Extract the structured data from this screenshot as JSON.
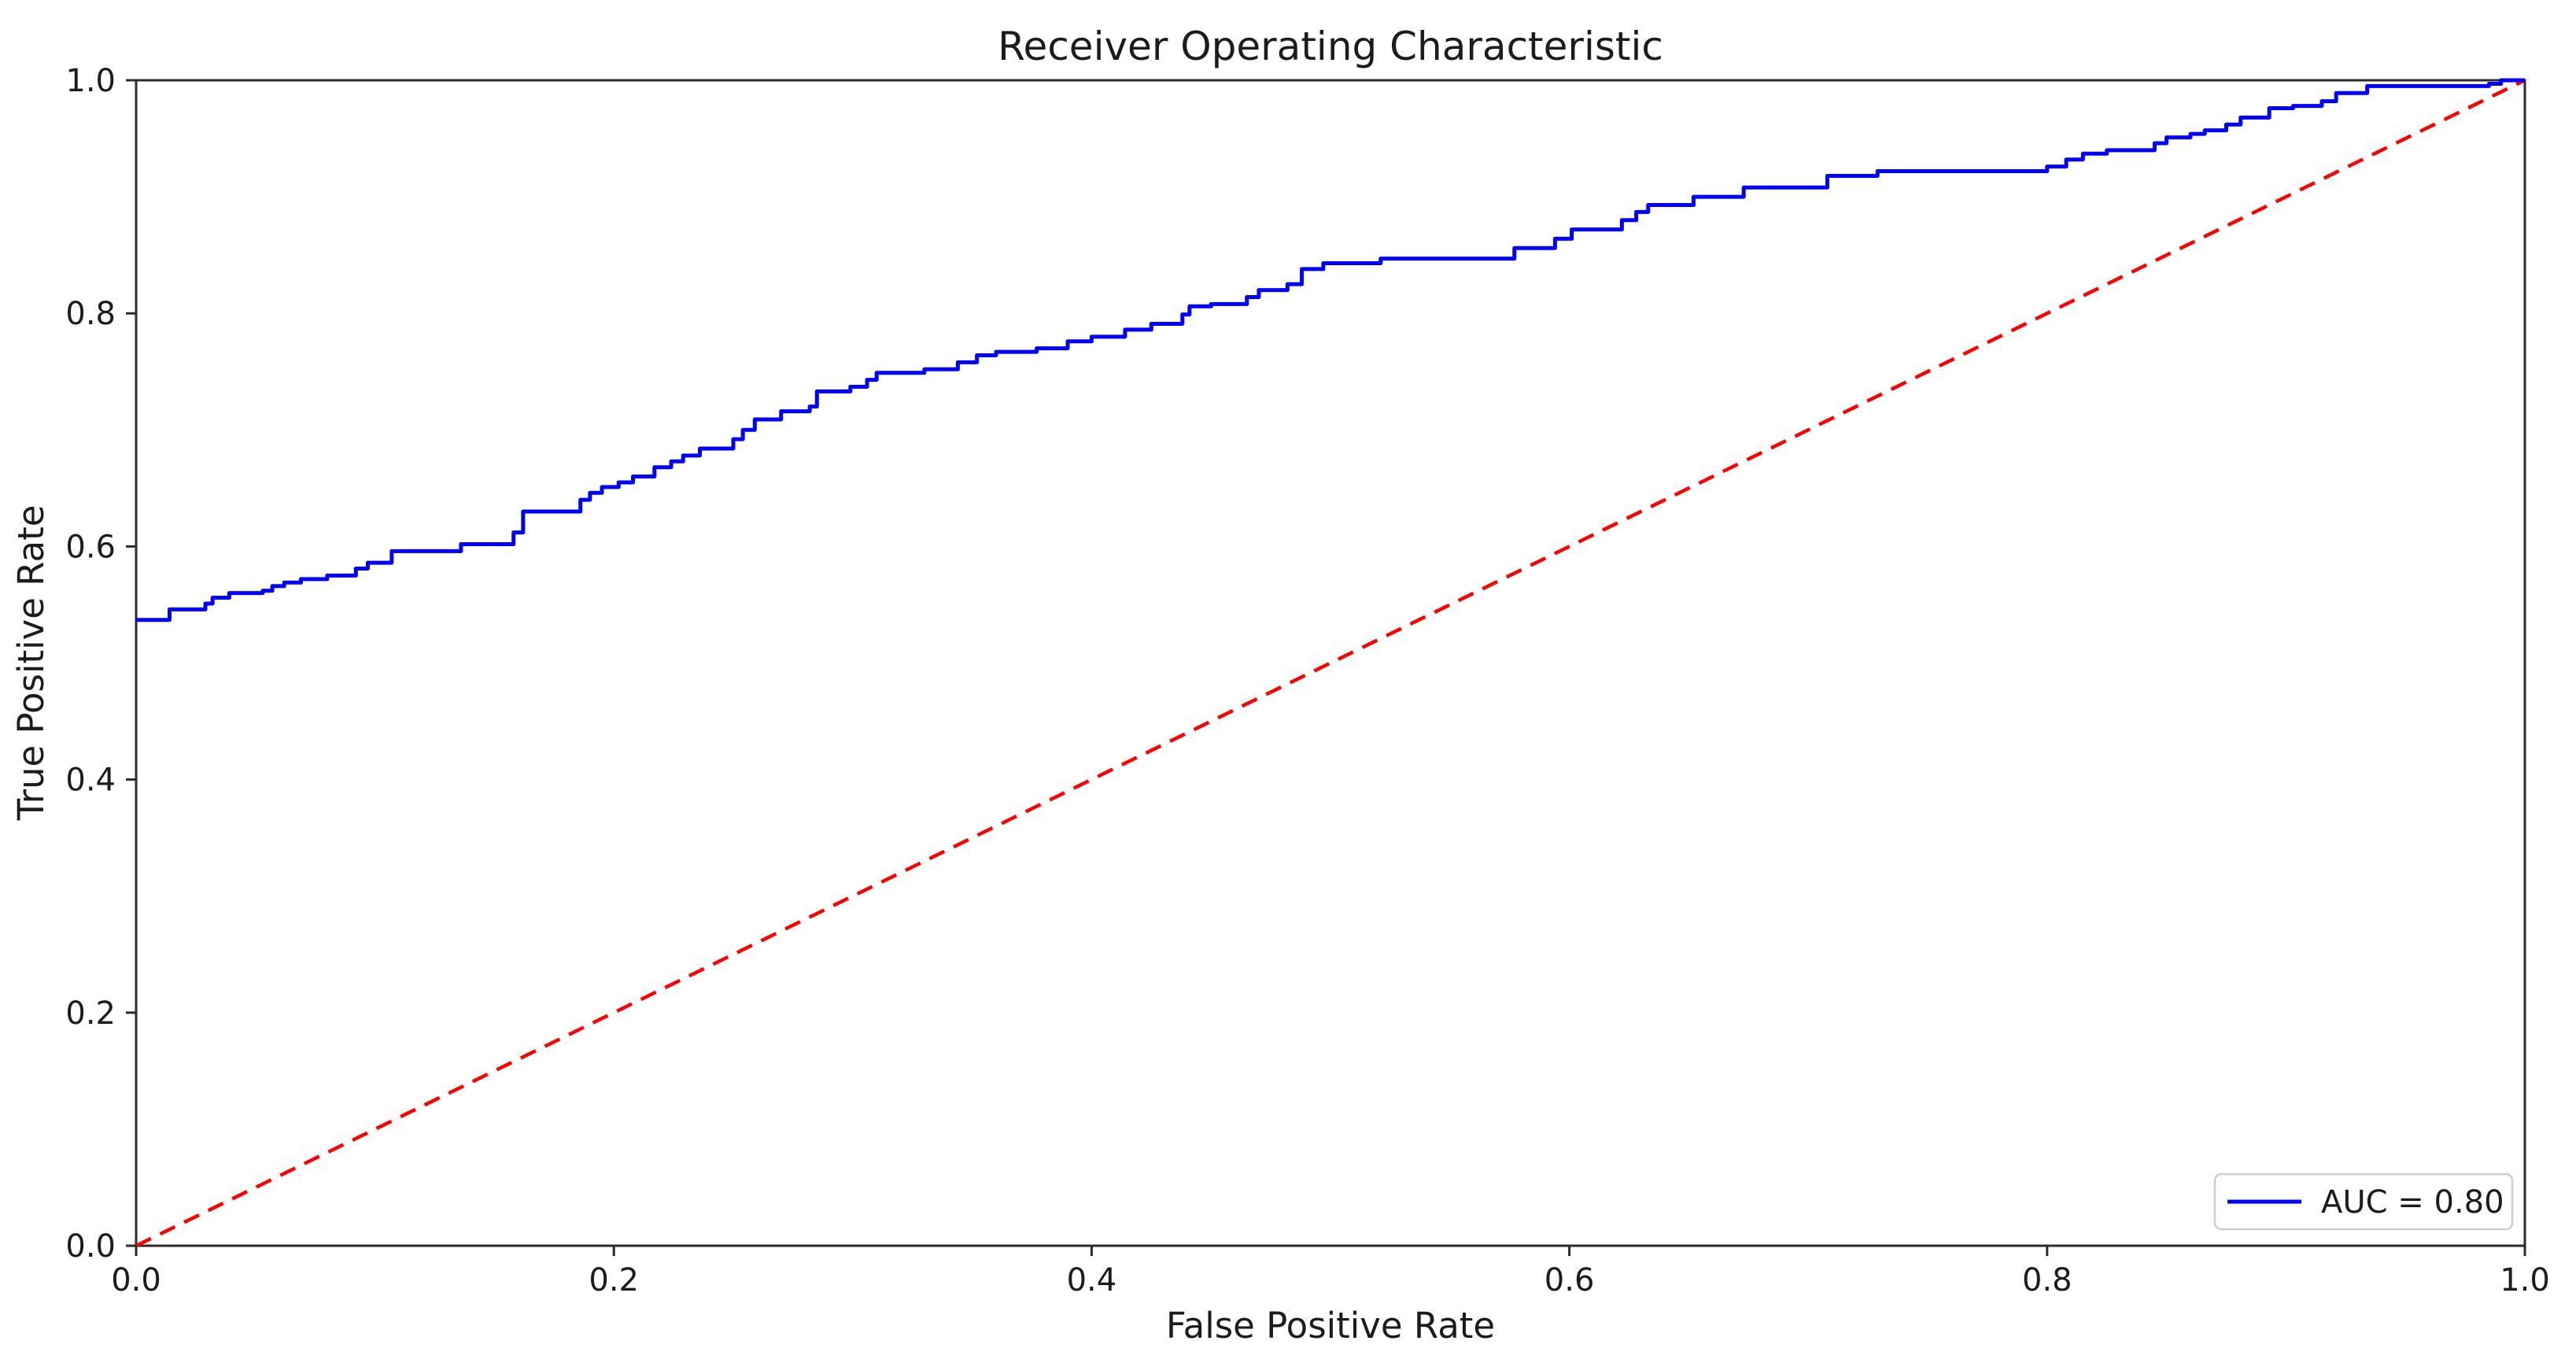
{
  "colors": {
    "roc_curve": "#0000ff",
    "chance_diagonal": "#ff0000",
    "axes": "#2b2b2b",
    "text": "#1c1c1c",
    "legend_border": "#cccccc",
    "background": "#ffffff"
  },
  "legend": {
    "label": "AUC = 0.80",
    "position": "lower right"
  },
  "chart_data": {
    "type": "line",
    "title": "Receiver Operating Characteristic",
    "xlabel": "False Positive Rate",
    "ylabel": "True Positive Rate",
    "xlim": [
      0.0,
      1.0
    ],
    "ylim": [
      0.0,
      1.0
    ],
    "grid": false,
    "legend_position": "lower right",
    "x_tick_labels": [
      "0.0",
      "0.2",
      "0.4",
      "0.6",
      "0.8",
      "1.0"
    ],
    "y_tick_labels": [
      "0.0",
      "0.2",
      "0.4",
      "0.6",
      "0.8",
      "1.0"
    ],
    "series": [
      {
        "name": "AUC = 0.80",
        "kind": "roc_step_curve",
        "auc": 0.8,
        "color": "#0000ff",
        "line_style": "solid",
        "in_legend": true,
        "points": [
          [
            0.0,
            0.537
          ],
          [
            0.014,
            0.546
          ],
          [
            0.029,
            0.551
          ],
          [
            0.032,
            0.556
          ],
          [
            0.039,
            0.56
          ],
          [
            0.053,
            0.562
          ],
          [
            0.057,
            0.566
          ],
          [
            0.062,
            0.569
          ],
          [
            0.069,
            0.572
          ],
          [
            0.08,
            0.575
          ],
          [
            0.092,
            0.581
          ],
          [
            0.097,
            0.586
          ],
          [
            0.107,
            0.596
          ],
          [
            0.136,
            0.602
          ],
          [
            0.158,
            0.612
          ],
          [
            0.162,
            0.63
          ],
          [
            0.186,
            0.64
          ],
          [
            0.19,
            0.646
          ],
          [
            0.195,
            0.651
          ],
          [
            0.202,
            0.655
          ],
          [
            0.208,
            0.66
          ],
          [
            0.217,
            0.668
          ],
          [
            0.224,
            0.673
          ],
          [
            0.229,
            0.678
          ],
          [
            0.236,
            0.684
          ],
          [
            0.25,
            0.692
          ],
          [
            0.254,
            0.7
          ],
          [
            0.259,
            0.709
          ],
          [
            0.27,
            0.716
          ],
          [
            0.282,
            0.72
          ],
          [
            0.285,
            0.733
          ],
          [
            0.299,
            0.737
          ],
          [
            0.306,
            0.743
          ],
          [
            0.31,
            0.749
          ],
          [
            0.33,
            0.752
          ],
          [
            0.344,
            0.758
          ],
          [
            0.352,
            0.764
          ],
          [
            0.36,
            0.767
          ],
          [
            0.377,
            0.77
          ],
          [
            0.39,
            0.776
          ],
          [
            0.4,
            0.78
          ],
          [
            0.414,
            0.786
          ],
          [
            0.425,
            0.791
          ],
          [
            0.438,
            0.799
          ],
          [
            0.441,
            0.806
          ],
          [
            0.45,
            0.808
          ],
          [
            0.465,
            0.814
          ],
          [
            0.47,
            0.82
          ],
          [
            0.482,
            0.825
          ],
          [
            0.488,
            0.838
          ],
          [
            0.497,
            0.843
          ],
          [
            0.521,
            0.847
          ],
          [
            0.577,
            0.856
          ],
          [
            0.594,
            0.864
          ],
          [
            0.601,
            0.872
          ],
          [
            0.622,
            0.88
          ],
          [
            0.628,
            0.887
          ],
          [
            0.633,
            0.893
          ],
          [
            0.652,
            0.9
          ],
          [
            0.673,
            0.908
          ],
          [
            0.708,
            0.918
          ],
          [
            0.729,
            0.922
          ],
          [
            0.8,
            0.926
          ],
          [
            0.808,
            0.932
          ],
          [
            0.815,
            0.937
          ],
          [
            0.825,
            0.94
          ],
          [
            0.845,
            0.946
          ],
          [
            0.85,
            0.951
          ],
          [
            0.86,
            0.954
          ],
          [
            0.866,
            0.957
          ],
          [
            0.875,
            0.962
          ],
          [
            0.881,
            0.968
          ],
          [
            0.893,
            0.976
          ],
          [
            0.903,
            0.978
          ],
          [
            0.915,
            0.982
          ],
          [
            0.921,
            0.989
          ],
          [
            0.934,
            0.995
          ],
          [
            0.985,
            0.997
          ],
          [
            0.99,
            1.0
          ],
          [
            1.0,
            1.0
          ]
        ]
      },
      {
        "name": "chance diagonal",
        "kind": "reference_line",
        "color": "#ff0000",
        "line_style": "dashed",
        "in_legend": false,
        "points": [
          [
            0.0,
            0.0
          ],
          [
            1.0,
            1.0
          ]
        ]
      }
    ]
  }
}
